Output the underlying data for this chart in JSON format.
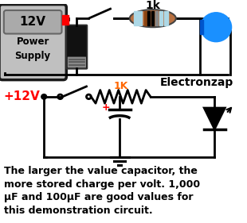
{
  "background_color": "#ffffff",
  "text_caption": "The larger the value capacitor, the\nmore stored charge per volt. 1,000\nμF and 100μF are good values for\nthis demonstration circuit.",
  "caption_fontsize": 9.0,
  "electronzap_text": "Electronzap",
  "electronzap_fontsize": 10,
  "label_1k_top": "1k",
  "label_1K_bottom": "1K",
  "label_12v_box": "12V",
  "label_power_supply": "Power\nSupply",
  "label_plus12v": "+12V",
  "wire_color": "#000000",
  "led_color_fill": "#1a90ff",
  "led_color_body": "#0055cc",
  "resistor_body_color": "#b87040",
  "ps_box_color": "#1a1a1a",
  "ps_fill_color": "#c0c0c0",
  "ps_inner_fill": "#b0b0b0",
  "capacitor_color": "#111111",
  "cap_bottom_color": "#888888",
  "red_color": "#ff0000",
  "orange_color": "#ff6600",
  "band1": "#8B4513",
  "band2": "#000000",
  "band3": "#000000",
  "band4": "#c0c0c0",
  "light_blue": "#add8e6"
}
